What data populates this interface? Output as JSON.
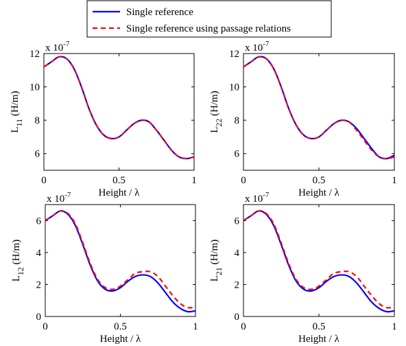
{
  "legend": {
    "entries": [
      {
        "label": "Single reference",
        "color": "#0000ff",
        "dash": "solid"
      },
      {
        "label": "Single reference using passage relations",
        "color": "#ff0000",
        "dash": "dashed"
      }
    ]
  },
  "chart_data": [
    {
      "type": "line",
      "panel": "top-left",
      "xlabel": "Height / λ",
      "ylabel": "L",
      "ylabel_sub": "11",
      "ylabel_unit": " (H/m)",
      "exponent_label": "x 10",
      "exponent_power": "-7",
      "xlim": [
        0,
        1
      ],
      "ylim": [
        5,
        12
      ],
      "xticks": [
        0,
        0.5,
        1
      ],
      "xtick_labels": [
        "0",
        "0.5",
        "1"
      ],
      "yticks": [
        6,
        8,
        10,
        12
      ],
      "ytick_labels": [
        "6",
        "8",
        "10",
        "12"
      ],
      "series": [
        {
          "name": "Single reference",
          "color": "#0000ff",
          "dash": "solid",
          "x": [
            0,
            0.05,
            0.1,
            0.15,
            0.2,
            0.25,
            0.3,
            0.35,
            0.4,
            0.45,
            0.5,
            0.55,
            0.6,
            0.65,
            0.7,
            0.75,
            0.8,
            0.85,
            0.9,
            0.95,
            1
          ],
          "y": [
            11.2,
            11.5,
            11.8,
            11.7,
            11.1,
            10.0,
            8.7,
            7.7,
            7.1,
            6.9,
            7.0,
            7.4,
            7.8,
            8.0,
            7.9,
            7.4,
            6.8,
            6.2,
            5.8,
            5.7,
            5.8
          ]
        },
        {
          "name": "Single reference using passage relations",
          "color": "#ff0000",
          "dash": "dashed",
          "x": [
            0,
            0.05,
            0.1,
            0.15,
            0.2,
            0.25,
            0.3,
            0.35,
            0.4,
            0.45,
            0.5,
            0.55,
            0.6,
            0.65,
            0.7,
            0.75,
            0.8,
            0.85,
            0.9,
            0.95,
            1
          ],
          "y": [
            11.2,
            11.5,
            11.8,
            11.7,
            11.1,
            10.0,
            8.7,
            7.7,
            7.1,
            6.9,
            7.0,
            7.4,
            7.8,
            8.0,
            7.9,
            7.4,
            6.8,
            6.2,
            5.8,
            5.7,
            5.8
          ]
        }
      ]
    },
    {
      "type": "line",
      "panel": "top-right",
      "xlabel": "Height / λ",
      "ylabel": "L",
      "ylabel_sub": "22",
      "ylabel_unit": " (H/m)",
      "exponent_label": "x 10",
      "exponent_power": "-7",
      "xlim": [
        0,
        1
      ],
      "ylim": [
        5,
        12
      ],
      "xticks": [
        0,
        0.5,
        1
      ],
      "xtick_labels": [
        "0",
        "0.5",
        "1"
      ],
      "yticks": [
        6,
        8,
        10,
        12
      ],
      "ytick_labels": [
        "6",
        "8",
        "10",
        "12"
      ],
      "series": [
        {
          "name": "Single reference",
          "color": "#0000ff",
          "dash": "solid",
          "x": [
            0,
            0.05,
            0.1,
            0.15,
            0.2,
            0.25,
            0.3,
            0.35,
            0.4,
            0.45,
            0.5,
            0.55,
            0.6,
            0.65,
            0.7,
            0.75,
            0.8,
            0.85,
            0.9,
            0.95,
            1
          ],
          "y": [
            11.2,
            11.5,
            11.8,
            11.7,
            11.1,
            10.0,
            8.7,
            7.7,
            7.1,
            6.9,
            7.0,
            7.4,
            7.8,
            8.0,
            7.9,
            7.5,
            6.9,
            6.3,
            5.8,
            5.7,
            5.9
          ]
        },
        {
          "name": "Single reference using passage relations",
          "color": "#ff0000",
          "dash": "dashed",
          "x": [
            0,
            0.05,
            0.1,
            0.15,
            0.2,
            0.25,
            0.3,
            0.35,
            0.4,
            0.45,
            0.5,
            0.55,
            0.6,
            0.65,
            0.7,
            0.75,
            0.8,
            0.85,
            0.9,
            0.95,
            1
          ],
          "y": [
            11.2,
            11.5,
            11.8,
            11.7,
            11.1,
            10.0,
            8.7,
            7.7,
            7.1,
            6.9,
            7.0,
            7.4,
            7.8,
            8.0,
            7.9,
            7.4,
            6.8,
            6.2,
            5.8,
            5.7,
            5.8
          ]
        }
      ]
    },
    {
      "type": "line",
      "panel": "bottom-left",
      "xlabel": "Height / λ",
      "ylabel": "L",
      "ylabel_sub": "12",
      "ylabel_unit": " (H/m)",
      "exponent_label": "x 10",
      "exponent_power": "-7",
      "xlim": [
        0,
        1
      ],
      "ylim": [
        0,
        7
      ],
      "xticks": [
        0,
        0.5,
        1
      ],
      "xtick_labels": [
        "0",
        "0.5",
        "1"
      ],
      "yticks": [
        0,
        2,
        4,
        6
      ],
      "ytick_labels": [
        "0",
        "2",
        "4",
        "6"
      ],
      "series": [
        {
          "name": "Single reference",
          "color": "#0000ff",
          "dash": "solid",
          "x": [
            0,
            0.05,
            0.1,
            0.15,
            0.2,
            0.25,
            0.3,
            0.35,
            0.4,
            0.45,
            0.5,
            0.55,
            0.6,
            0.65,
            0.7,
            0.75,
            0.8,
            0.85,
            0.9,
            0.95,
            1
          ],
          "y": [
            6.0,
            6.3,
            6.6,
            6.4,
            5.7,
            4.5,
            3.2,
            2.2,
            1.7,
            1.6,
            1.8,
            2.2,
            2.5,
            2.6,
            2.5,
            2.1,
            1.5,
            0.9,
            0.5,
            0.3,
            0.35
          ]
        },
        {
          "name": "Single reference using passage relations",
          "color": "#ff0000",
          "dash": "dashed",
          "x": [
            0,
            0.05,
            0.1,
            0.15,
            0.2,
            0.25,
            0.3,
            0.35,
            0.4,
            0.45,
            0.5,
            0.55,
            0.6,
            0.65,
            0.7,
            0.75,
            0.8,
            0.85,
            0.9,
            0.95,
            1
          ],
          "y": [
            6.0,
            6.3,
            6.6,
            6.45,
            5.8,
            4.6,
            3.3,
            2.3,
            1.8,
            1.7,
            1.9,
            2.3,
            2.7,
            2.8,
            2.8,
            2.5,
            1.9,
            1.3,
            0.8,
            0.55,
            0.6
          ]
        }
      ]
    },
    {
      "type": "line",
      "panel": "bottom-right",
      "xlabel": "Height / λ",
      "ylabel": "L",
      "ylabel_sub": "21",
      "ylabel_unit": " (H/m)",
      "exponent_label": "x 10",
      "exponent_power": "-7",
      "xlim": [
        0,
        1
      ],
      "ylim": [
        0,
        7
      ],
      "xticks": [
        0,
        0.5,
        1
      ],
      "xtick_labels": [
        "0",
        "0.5",
        "1"
      ],
      "yticks": [
        0,
        2,
        4,
        6
      ],
      "ytick_labels": [
        "0",
        "2",
        "4",
        "6"
      ],
      "series": [
        {
          "name": "Single reference",
          "color": "#0000ff",
          "dash": "solid",
          "x": [
            0,
            0.05,
            0.1,
            0.15,
            0.2,
            0.25,
            0.3,
            0.35,
            0.4,
            0.45,
            0.5,
            0.55,
            0.6,
            0.65,
            0.7,
            0.75,
            0.8,
            0.85,
            0.9,
            0.95,
            1
          ],
          "y": [
            6.0,
            6.3,
            6.6,
            6.4,
            5.7,
            4.5,
            3.2,
            2.2,
            1.7,
            1.6,
            1.8,
            2.2,
            2.5,
            2.6,
            2.5,
            2.1,
            1.5,
            0.9,
            0.5,
            0.3,
            0.35
          ]
        },
        {
          "name": "Single reference using passage relations",
          "color": "#ff0000",
          "dash": "dashed",
          "x": [
            0,
            0.05,
            0.1,
            0.15,
            0.2,
            0.25,
            0.3,
            0.35,
            0.4,
            0.45,
            0.5,
            0.55,
            0.6,
            0.65,
            0.7,
            0.75,
            0.8,
            0.85,
            0.9,
            0.95,
            1
          ],
          "y": [
            6.0,
            6.3,
            6.6,
            6.45,
            5.8,
            4.6,
            3.3,
            2.3,
            1.8,
            1.7,
            1.9,
            2.3,
            2.7,
            2.8,
            2.8,
            2.5,
            1.9,
            1.3,
            0.8,
            0.55,
            0.6
          ]
        }
      ]
    }
  ]
}
